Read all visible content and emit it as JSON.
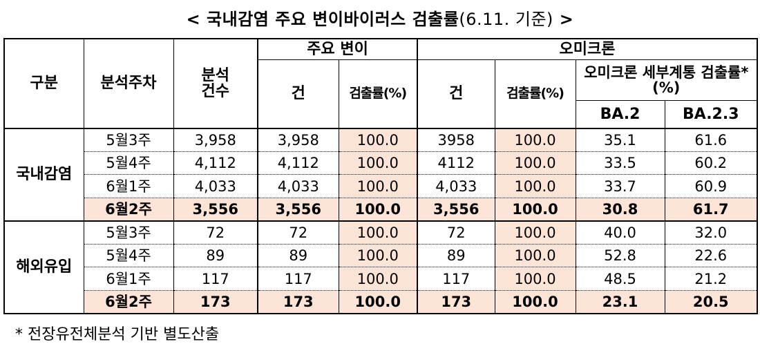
{
  "title": {
    "main": "< 국내감염 주요 변이바이러스 검출률",
    "basis": "(6.11. 기준)",
    "end": " >"
  },
  "headers": {
    "category": "구분",
    "week": "분석주차",
    "count": "분석\n건수",
    "major_variant": "주요 변이",
    "omicron": "오미크론",
    "cases": "건",
    "rate": "검출률(%)",
    "subtype": "오미크론 세부계통 검출률*(%)",
    "ba2": "BA.2",
    "ba23": "BA.2.3"
  },
  "groups": [
    {
      "name": "국내감염",
      "rows": [
        {
          "week": "5월3주",
          "count": "3,958",
          "mv_cases": "3,958",
          "mv_rate": "100.0",
          "om_cases": "3958",
          "om_rate": "100.0",
          "ba2": "35.1",
          "ba23": "61.6"
        },
        {
          "week": "5월4주",
          "count": "4,112",
          "mv_cases": "4,112",
          "mv_rate": "100.0",
          "om_cases": "4112",
          "om_rate": "100.0",
          "ba2": "33.5",
          "ba23": "60.2"
        },
        {
          "week": "6월1주",
          "count": "4,033",
          "mv_cases": "4,033",
          "mv_rate": "100.0",
          "om_cases": "4,033",
          "om_rate": "100.0",
          "ba2": "33.7",
          "ba23": "60.9"
        },
        {
          "week": "6월2주",
          "count": "3,556",
          "mv_cases": "3,556",
          "mv_rate": "100.0",
          "om_cases": "3,556",
          "om_rate": "100.0",
          "ba2": "30.8",
          "ba23": "61.7"
        }
      ]
    },
    {
      "name": "해외유입",
      "rows": [
        {
          "week": "5월3주",
          "count": "72",
          "mv_cases": "72",
          "mv_rate": "100.0",
          "om_cases": "72",
          "om_rate": "100.0",
          "ba2": "40.0",
          "ba23": "32.0"
        },
        {
          "week": "5월4주",
          "count": "89",
          "mv_cases": "89",
          "mv_rate": "100.0",
          "om_cases": "89",
          "om_rate": "100.0",
          "ba2": "52.8",
          "ba23": "22.6"
        },
        {
          "week": "6월1주",
          "count": "117",
          "mv_cases": "117",
          "mv_rate": "100.0",
          "om_cases": "117",
          "om_rate": "100.0",
          "ba2": "48.5",
          "ba23": "21.2"
        },
        {
          "week": "6월2주",
          "count": "173",
          "mv_cases": "173",
          "mv_rate": "100.0",
          "om_cases": "173",
          "om_rate": "100.0",
          "ba2": "23.1",
          "ba23": "20.5"
        }
      ]
    }
  ],
  "footnote": "* 전장유전체분석 기반 별도산출",
  "colors": {
    "highlight": "#fce4d6"
  }
}
